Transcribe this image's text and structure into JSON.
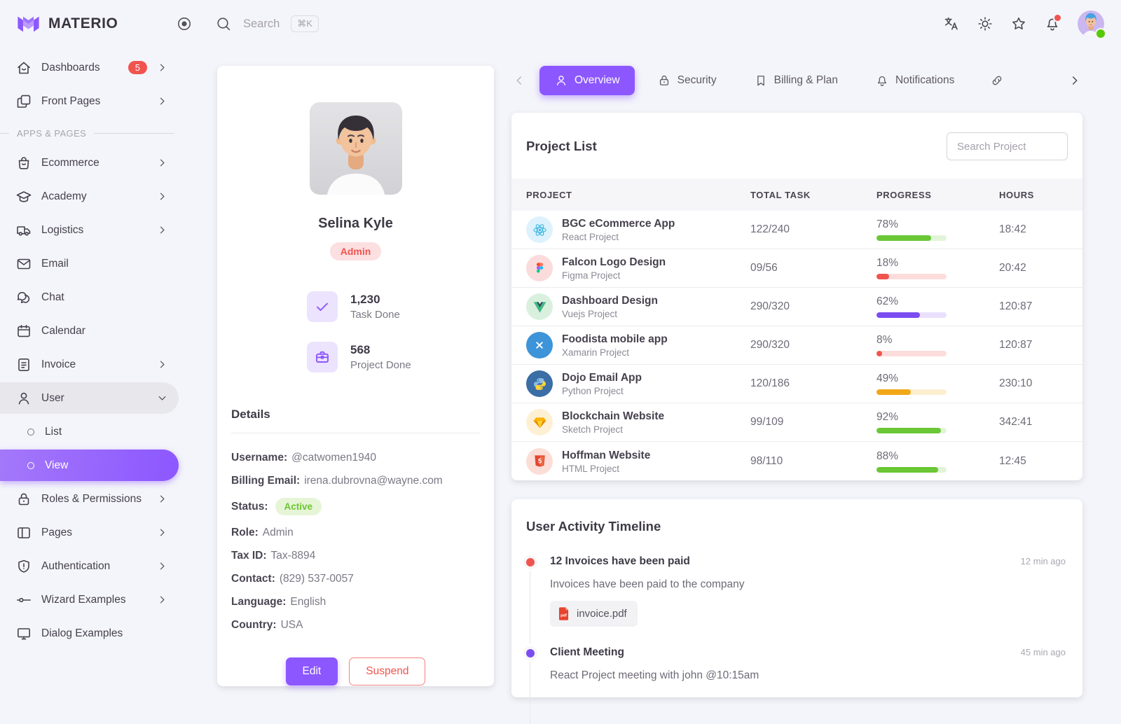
{
  "brand": {
    "name": "MATERIO"
  },
  "header": {
    "search": {
      "placeholder": "Search",
      "shortcut": "⌘K"
    },
    "actions": [
      "language-icon",
      "light-mode-icon",
      "star-icon",
      "bell-icon",
      "user-avatar"
    ]
  },
  "colors": {
    "primary": "#8c57ff",
    "error": "#f1544e",
    "success": "#6ac735",
    "warning": "#f2a719"
  },
  "sidebar": {
    "section_label": "APPS & PAGES",
    "items": [
      {
        "label": "Dashboards",
        "icon": "home-icon",
        "badge": "5"
      },
      {
        "label": "Front Pages",
        "icon": "pages-copy-icon"
      },
      {
        "label": "Ecommerce",
        "icon": "shopping-bag-icon"
      },
      {
        "label": "Academy",
        "icon": "graduation-cap-icon"
      },
      {
        "label": "Logistics",
        "icon": "truck-icon"
      },
      {
        "label": "Email",
        "icon": "email-icon"
      },
      {
        "label": "Chat",
        "icon": "chat-icon"
      },
      {
        "label": "Calendar",
        "icon": "calendar-icon"
      },
      {
        "label": "Invoice",
        "icon": "invoice-icon"
      },
      {
        "label": "User",
        "icon": "user-icon"
      },
      {
        "label": "List",
        "icon": "circle-icon"
      },
      {
        "label": "View",
        "icon": "circle-icon"
      },
      {
        "label": "Roles & Permissions",
        "icon": "lock-icon"
      },
      {
        "label": "Pages",
        "icon": "layout-icon"
      },
      {
        "label": "Authentication",
        "icon": "shield-icon"
      },
      {
        "label": "Wizard Examples",
        "icon": "wizard-icon"
      },
      {
        "label": "Dialog Examples",
        "icon": "dialog-icon"
      }
    ]
  },
  "profile": {
    "name": "Selina Kyle",
    "role_badge": "Admin",
    "stats": [
      {
        "value": "1,230",
        "label": "Task Done",
        "icon": "check-icon"
      },
      {
        "value": "568",
        "label": "Project Done",
        "icon": "briefcase-icon"
      }
    ],
    "details_title": "Details",
    "details": [
      {
        "label": "Username:",
        "value": "@catwomen1940"
      },
      {
        "label": "Billing Email:",
        "value": "irena.dubrovna@wayne.com"
      },
      {
        "label": "Status:",
        "value": "Active"
      },
      {
        "label": "Role:",
        "value": "Admin"
      },
      {
        "label": "Tax ID:",
        "value": "Tax-8894"
      },
      {
        "label": "Contact:",
        "value": "(829) 537-0057"
      },
      {
        "label": "Language:",
        "value": "English"
      },
      {
        "label": "Country:",
        "value": "USA"
      }
    ],
    "buttons": {
      "edit": "Edit",
      "suspend": "Suspend"
    }
  },
  "tabs": {
    "items": [
      {
        "label": "Overview",
        "icon": "user-icon",
        "active": true
      },
      {
        "label": "Security",
        "icon": "lock-icon"
      },
      {
        "label": "Billing & Plan",
        "icon": "bookmark-icon"
      },
      {
        "label": "Notifications",
        "icon": "bell-icon"
      },
      {
        "label": "",
        "icon": "link-icon"
      }
    ]
  },
  "project_list": {
    "title": "Project List",
    "search_placeholder": "Search Project",
    "columns": [
      "PROJECT",
      "TOTAL TASK",
      "PROGRESS",
      "HOURS"
    ],
    "rows": [
      {
        "name": "BGC eCommerce App",
        "type": "React Project",
        "icon": "react-icon",
        "icon_bg": "#ddf2fc",
        "total": "122/240",
        "progress": 78,
        "progress_label": "78%",
        "bar_color": "#6ac735",
        "track_color": "#e2f4d8",
        "hours": "18:42"
      },
      {
        "name": "Falcon Logo Design",
        "type": "Figma Project",
        "icon": "figma-icon",
        "icon_bg": "#fbdbdc",
        "total": "09/56",
        "progress": 18,
        "progress_label": "18%",
        "bar_color": "#f1544e",
        "track_color": "#fcdddc",
        "hours": "20:42"
      },
      {
        "name": "Dashboard Design",
        "type": "Vuejs Project",
        "icon": "vuejs-icon",
        "icon_bg": "#d9f0df",
        "total": "290/320",
        "progress": 62,
        "progress_label": "62%",
        "bar_color": "#7b4df0",
        "track_color": "#e9e0fc",
        "hours": "120:87"
      },
      {
        "name": "Foodista mobile app",
        "type": "Xamarin Project",
        "icon": "xamarin-icon",
        "icon_bg": "#3d94d8",
        "total": "290/320",
        "progress": 8,
        "progress_label": "8%",
        "bar_color": "#f1544e",
        "track_color": "#fcdddc",
        "hours": "120:87"
      },
      {
        "name": "Dojo Email App",
        "type": "Python Project",
        "icon": "python-icon",
        "icon_bg": "#3b6ea5",
        "total": "120/186",
        "progress": 49,
        "progress_label": "49%",
        "bar_color": "#f2a719",
        "track_color": "#fcefd0",
        "hours": "230:10"
      },
      {
        "name": "Blockchain Website",
        "type": "Sketch Project",
        "icon": "sketch-icon",
        "icon_bg": "#fdf0d4",
        "total": "99/109",
        "progress": 92,
        "progress_label": "92%",
        "bar_color": "#6ac735",
        "track_color": "#e2f4d8",
        "hours": "342:41"
      },
      {
        "name": "Hoffman Website",
        "type": "HTML Project",
        "icon": "html5-icon",
        "icon_bg": "#fbded7",
        "total": "98/110",
        "progress": 88,
        "progress_label": "88%",
        "bar_color": "#6ac735",
        "track_color": "#e2f4d8",
        "hours": "12:45"
      }
    ]
  },
  "timeline": {
    "title": "User Activity Timeline",
    "items": [
      {
        "title": "12 Invoices have been paid",
        "time": "12 min ago",
        "desc": "Invoices have been paid to the company",
        "attachment": "invoice.pdf",
        "dot_color": "#f1544e"
      },
      {
        "title": "Client Meeting",
        "time": "45 min ago",
        "desc": "React Project meeting with john @10:15am",
        "dot_color": "#7b4df0"
      }
    ]
  }
}
